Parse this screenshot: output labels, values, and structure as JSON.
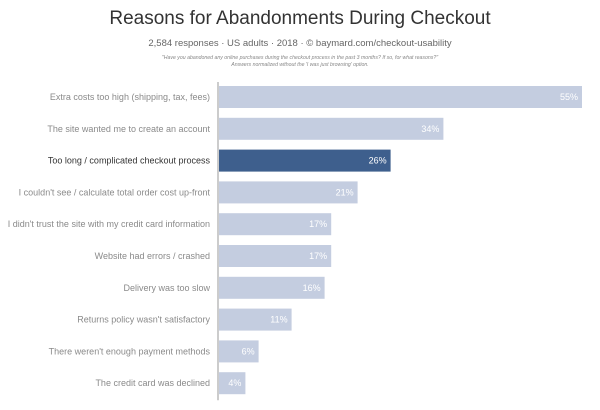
{
  "header": {
    "title": "Reasons for Abandonments During Checkout",
    "subtitle": "2,584 responses  ·  US adults  ·  2018  ·  © baymard.com/checkout-usability",
    "note_line1": "\"Have you abandoned any online purchases during the checkout process in the past 3 months? If so, for what reasons?\"",
    "note_line2": "Answers normalized without the 'I was just browsing' option."
  },
  "colors": {
    "bar": "#c4cde0",
    "bar_highlight": "#3e5f8d",
    "axis": "#999999"
  },
  "chart_data": {
    "type": "bar",
    "orientation": "horizontal",
    "title": "Reasons for Abandonments During Checkout",
    "xlim": [
      0,
      55
    ],
    "grid": false,
    "highlight_index": 2,
    "categories": [
      "Extra costs too high (shipping, tax, fees)",
      "The site wanted me to create an account",
      "Too long / complicated checkout process",
      "I couldn't see / calculate total order cost up-front",
      "I didn't trust the site with my credit card information",
      "Website had errors / crashed",
      "Delivery was too slow",
      "Returns policy wasn't satisfactory",
      "There weren't enough payment methods",
      "The credit card was declined"
    ],
    "values": [
      55,
      34,
      26,
      21,
      17,
      17,
      16,
      11,
      6,
      4
    ],
    "value_labels": [
      "55%",
      "34%",
      "26%",
      "21%",
      "17%",
      "17%",
      "16%",
      "11%",
      "6%",
      "4%"
    ]
  }
}
